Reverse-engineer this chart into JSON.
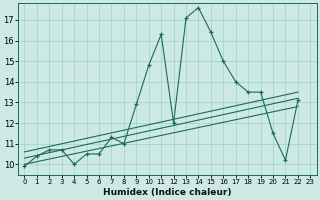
{
  "xlabel": "Humidex (Indice chaleur)",
  "bg_color": "#cce9e4",
  "grid_color": "#a8d4ce",
  "line_color": "#1a6b5a",
  "xlim": [
    -0.5,
    23.5
  ],
  "ylim": [
    9.5,
    17.8
  ],
  "yticks": [
    10,
    11,
    12,
    13,
    14,
    15,
    16,
    17
  ],
  "xticks": [
    0,
    1,
    2,
    3,
    4,
    5,
    6,
    7,
    8,
    9,
    10,
    11,
    12,
    13,
    14,
    15,
    16,
    17,
    18,
    19,
    20,
    21,
    22,
    23
  ],
  "main_x": [
    0,
    1,
    2,
    3,
    4,
    5,
    6,
    7,
    8,
    9,
    10,
    11,
    12,
    13,
    14,
    15,
    16,
    17,
    18,
    19,
    20,
    21,
    22
  ],
  "main_y": [
    9.9,
    10.4,
    10.7,
    10.7,
    10.0,
    10.5,
    10.5,
    11.3,
    11.0,
    12.9,
    14.8,
    16.3,
    12.0,
    17.1,
    17.6,
    16.4,
    15.0,
    14.0,
    13.5,
    13.5,
    11.5,
    10.2,
    13.1
  ],
  "line2_x": [
    0,
    22
  ],
  "line2_y": [
    10.6,
    13.5
  ],
  "line3_x": [
    0,
    22
  ],
  "line3_y": [
    10.3,
    13.2
  ],
  "line4_x": [
    0,
    22
  ],
  "line4_y": [
    10.0,
    12.8
  ]
}
